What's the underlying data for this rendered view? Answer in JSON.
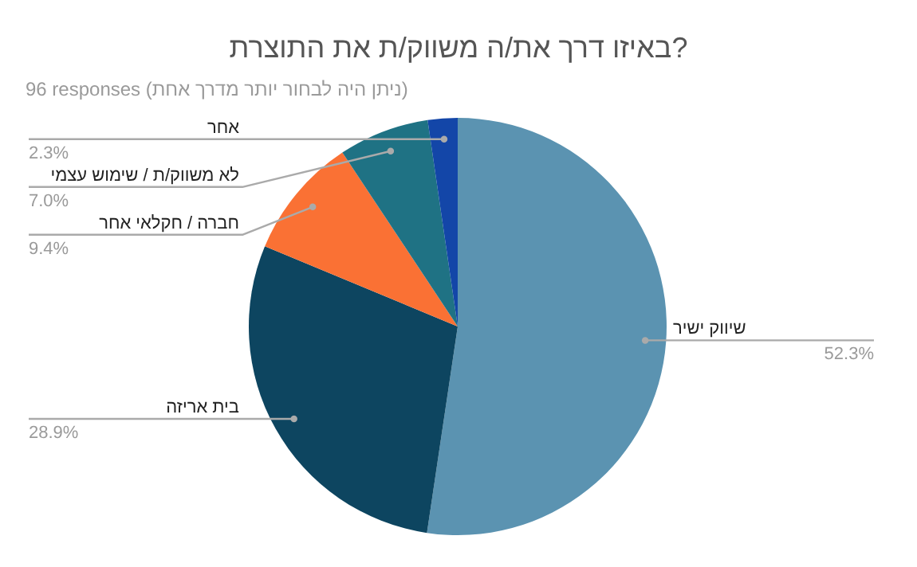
{
  "chart_data": {
    "type": "pie",
    "title": "באיזו דרך את/ה משווק/ת את התוצרת?",
    "subtitle": "96 responses (ניתן היה לבחור יותר מדרך אחת)",
    "categories": [
      "שיווק ישיר",
      "בית אריזה",
      "חברה / חקלאי אחר",
      "לא משווק/ת / שימוש עצמי",
      "אחר"
    ],
    "values": [
      52.3,
      28.9,
      9.4,
      7.0,
      2.3
    ],
    "value_labels": [
      "52.3%",
      "28.9%",
      "9.4%",
      "7.0%",
      "2.3%"
    ],
    "colors": [
      "#5b93b1",
      "#0d4560",
      "#fa7134",
      "#1f7284",
      "#1346a8"
    ]
  }
}
